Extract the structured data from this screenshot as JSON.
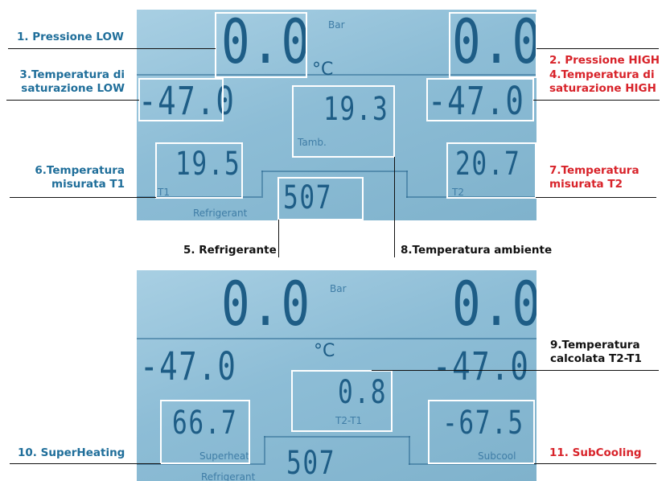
{
  "top_panel": {
    "bar_unit": "Bar",
    "celsius_unit": "°C",
    "pressure_low": "0.0",
    "pressure_high": "0.0",
    "sat_temp_low": "-47.0",
    "sat_temp_high": "-47.0",
    "ambient_temp": "19.3",
    "ambient_tag": "Tamb.",
    "t1": "19.5",
    "t1_tag": "T1",
    "t2": "20.7",
    "t2_tag": "T2",
    "refrigerant": "507",
    "refrigerant_tag": "Refrigerant"
  },
  "bottom_panel": {
    "bar_unit": "Bar",
    "celsius_unit": "°C",
    "pressure_low": "0.0",
    "pressure_high": "0.0",
    "sat_temp_low": "-47.0",
    "sat_temp_high": "-47.0",
    "delta": "0.8",
    "delta_tag": "T2-T1",
    "superheat": "66.7",
    "superheat_tag": "Superheat",
    "subcool": "-67.5",
    "subcool_tag": "Subcool",
    "refrigerant": "507",
    "refrigerant_tag": "Refrigerant"
  },
  "labels": {
    "l1": "1. Pressione LOW",
    "l2": "2. Pressione HIGH",
    "l3a": "3.Temperatura di",
    "l3b": "saturazione LOW",
    "l4a": "4.Temperatura di",
    "l4b": "saturazione HIGH",
    "l5": "5. Refrigerante",
    "l6a": "6.Temperatura",
    "l6b": "misurata T1",
    "l7a": "7.Temperatura",
    "l7b": "misurata T2",
    "l8": "8.Temperatura ambiente",
    "l9a": "9.Temperatura",
    "l9b": "calcolata T2-T1",
    "l10": "10. SuperHeating",
    "l11": "11. SubCooling"
  },
  "colors": {
    "blue_label": "#1f6e9a",
    "red_label": "#d8232a",
    "lcd_background": "#8dbdd6",
    "lcd_digits": "#1e5d86"
  }
}
